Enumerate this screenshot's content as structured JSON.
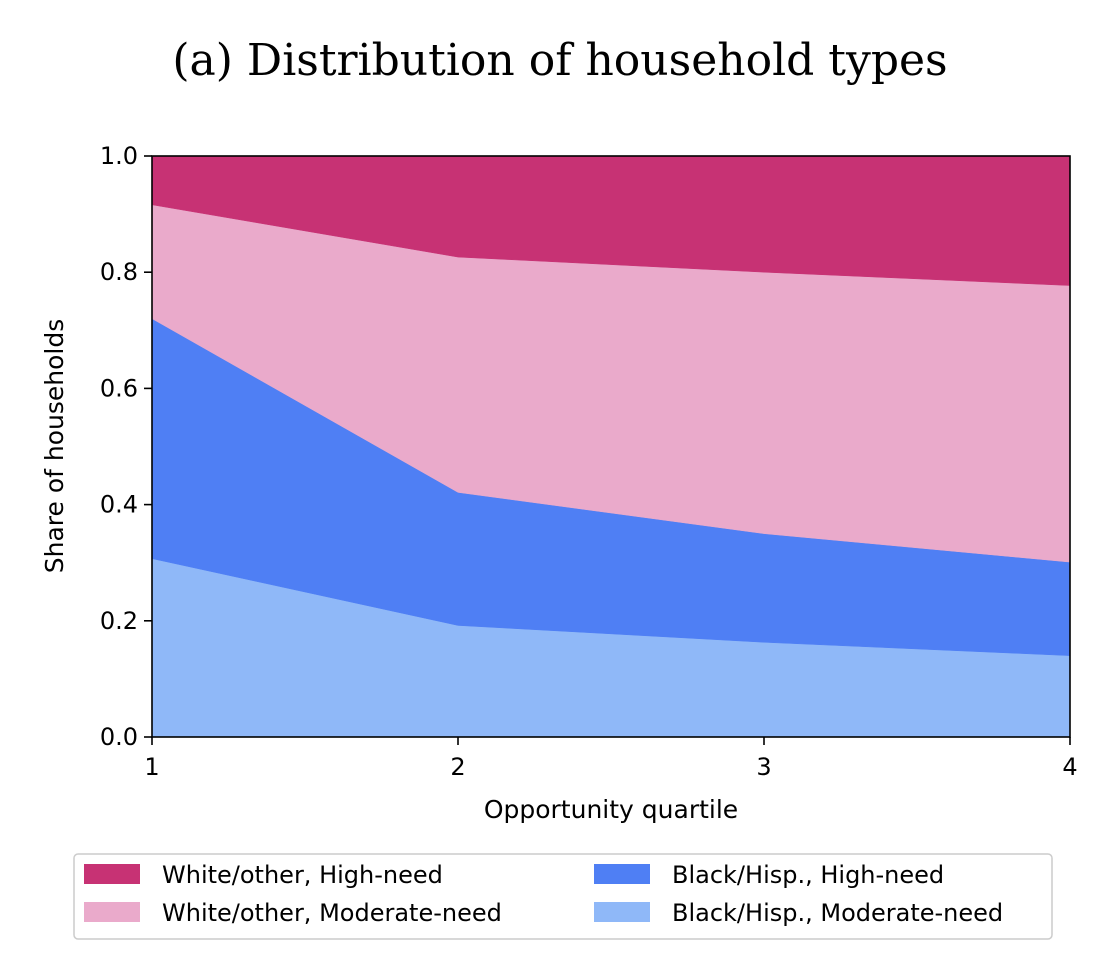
{
  "chart_data": {
    "type": "area",
    "stacked": true,
    "title": "(a) Distribution of household types",
    "xlabel": "Opportunity quartile",
    "ylabel": "Share of households",
    "x": [
      1,
      2,
      3,
      4
    ],
    "xticks": [
      "1",
      "2",
      "3",
      "4"
    ],
    "yticks": [
      "0.0",
      "0.2",
      "0.4",
      "0.6",
      "0.8",
      "1.0"
    ],
    "ylim": [
      0,
      1
    ],
    "xlim": [
      1,
      4
    ],
    "legend_position": "bottom",
    "series": [
      {
        "name": "Black/Hisp., Moderate-need",
        "color": "#8fb8f8",
        "values": [
          0.307,
          0.192,
          0.163,
          0.14
        ]
      },
      {
        "name": "Black/Hisp., High-need",
        "color": "#4f7ff4",
        "values": [
          0.413,
          0.229,
          0.187,
          0.161
        ]
      },
      {
        "name": "White/other, Moderate-need",
        "color": "#eaaacb",
        "values": [
          0.196,
          0.405,
          0.45,
          0.476
        ]
      },
      {
        "name": "White/other, High-need",
        "color": "#c73274",
        "values": [
          0.084,
          0.174,
          0.2,
          0.223
        ]
      }
    ],
    "legend_order": [
      "White/other, High-need",
      "White/other, Moderate-need",
      "Black/Hisp., High-need",
      "Black/Hisp., Moderate-need"
    ]
  }
}
